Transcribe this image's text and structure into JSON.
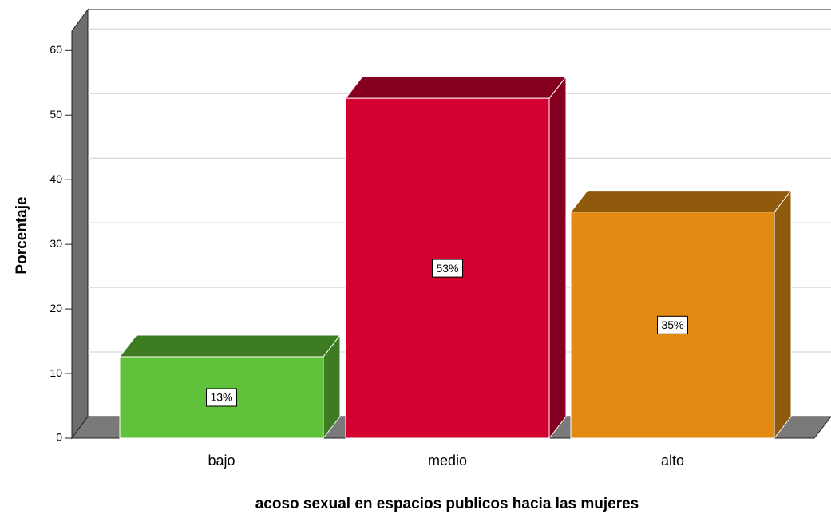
{
  "chart_data": {
    "type": "bar3d",
    "x_label": "acoso sexual en espacios publicos hacia las mujeres",
    "y_label": "Porcentaje",
    "categories": [
      "bajo",
      "medio",
      "alto"
    ],
    "values": [
      12.6,
      52.6,
      35.0
    ],
    "value_labels": [
      "13%",
      "53%",
      "35%"
    ],
    "colors": [
      "#5fc23a",
      "#d40030",
      "#e28a12"
    ],
    "top_colors": [
      "#3d7c22",
      "#850020",
      "#8f5a0c"
    ],
    "ylim": [
      0,
      63
    ],
    "yticks": [
      0,
      10,
      20,
      30,
      40,
      50,
      60
    ],
    "grid": true
  }
}
